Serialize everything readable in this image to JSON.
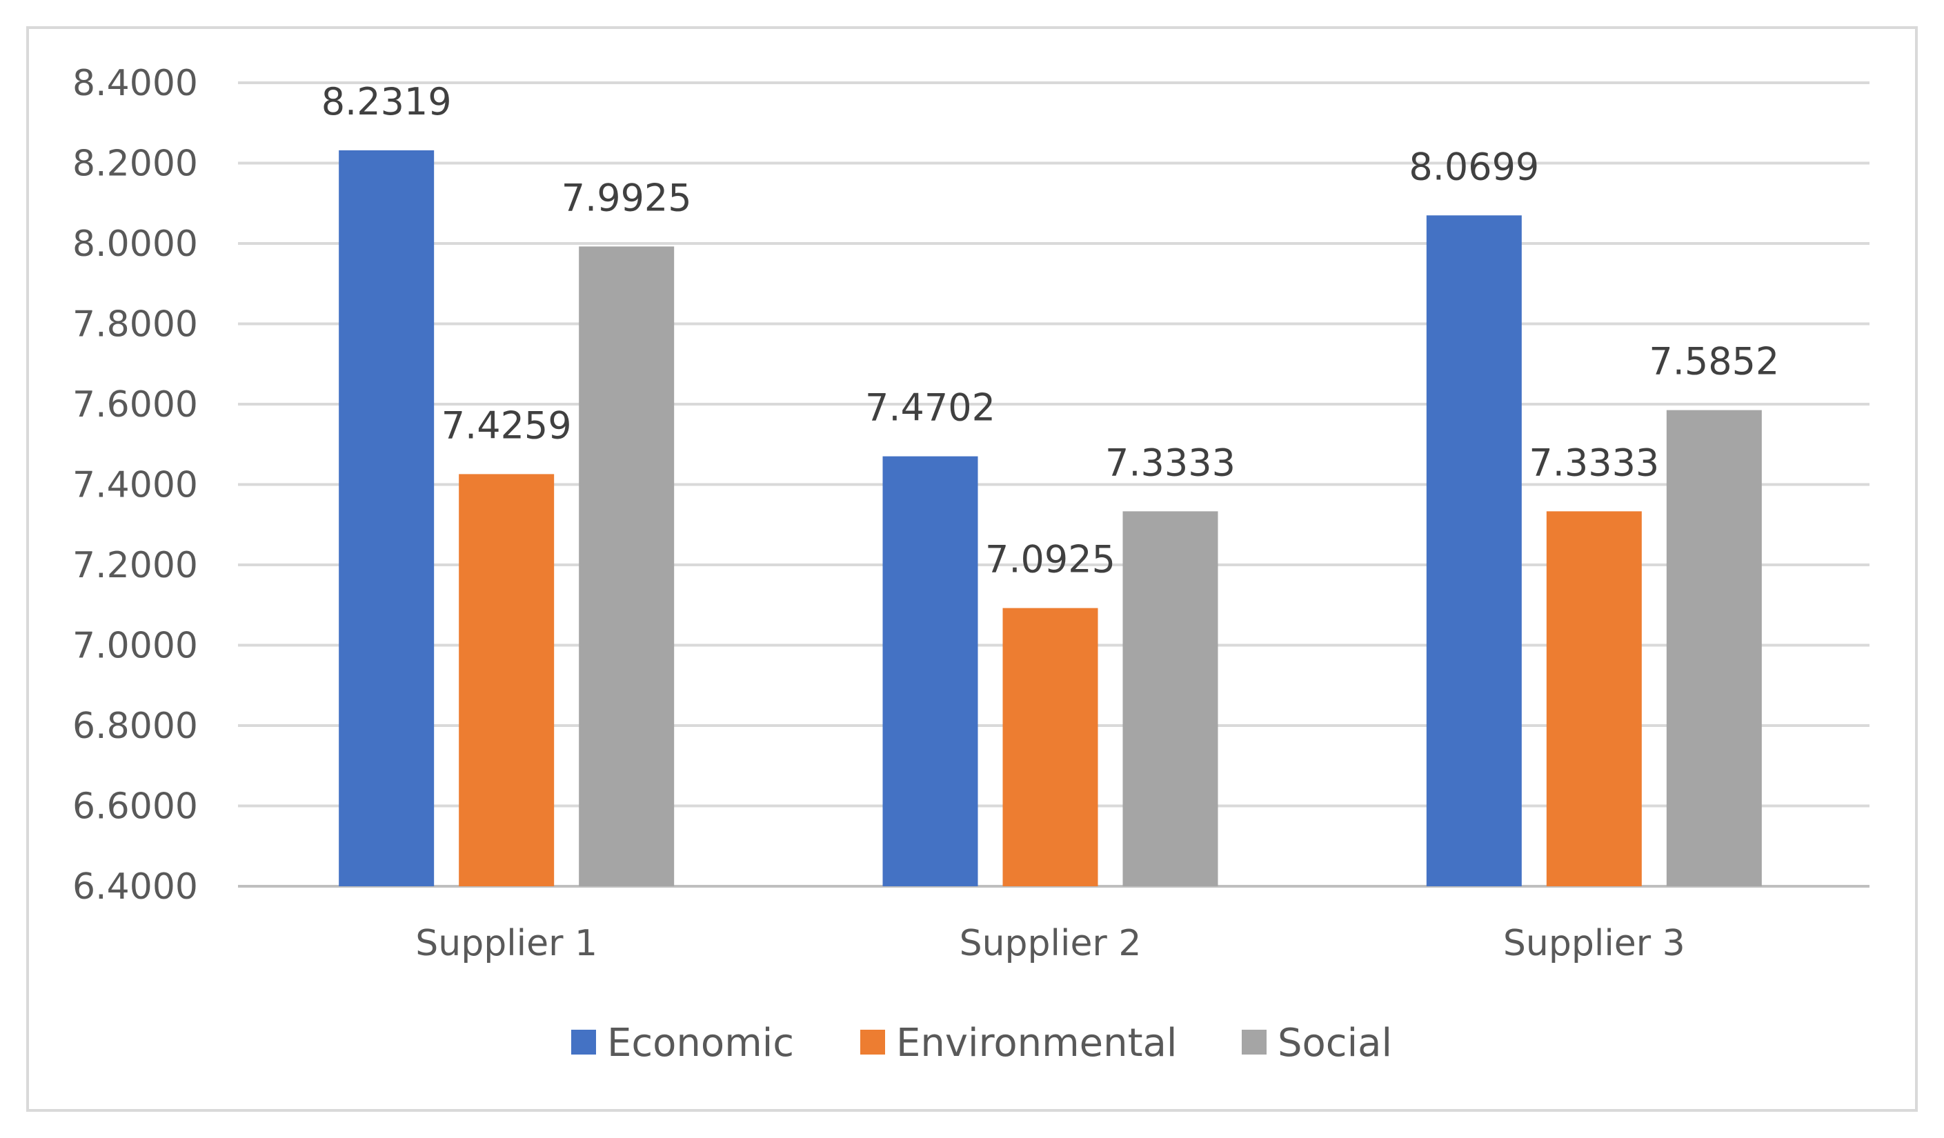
{
  "chart_data": {
    "type": "bar",
    "title": "",
    "xlabel": "",
    "ylabel": "",
    "categories": [
      "Supplier 1",
      "Supplier 2",
      "Supplier 3"
    ],
    "series": [
      {
        "name": "Economic",
        "color": "#4472c4",
        "values": [
          8.2319,
          7.4702,
          8.0699
        ],
        "labels": [
          "8.2319",
          "7.4702",
          "8.0699"
        ]
      },
      {
        "name": "Environmental",
        "color": "#ed7d31",
        "values": [
          7.4259,
          7.0925,
          7.3333
        ],
        "labels": [
          "7.4259",
          "7.0925",
          "7.3333"
        ]
      },
      {
        "name": "Social",
        "color": "#a5a5a5",
        "values": [
          7.9925,
          7.3333,
          7.5852
        ],
        "labels": [
          "7.9925",
          "7.3333",
          "7.5852"
        ]
      }
    ],
    "ylim": [
      6.4,
      8.4
    ],
    "yticks": [
      6.4,
      6.6,
      6.8,
      7.0,
      7.2,
      7.4,
      7.6,
      7.8,
      8.0,
      8.2,
      8.4
    ],
    "ytick_labels": [
      "6.4000",
      "6.6000",
      "6.8000",
      "7.0000",
      "7.2000",
      "7.4000",
      "7.6000",
      "7.8000",
      "8.0000",
      "8.2000",
      "8.4000"
    ],
    "grid": true,
    "legend_position": "bottom"
  }
}
